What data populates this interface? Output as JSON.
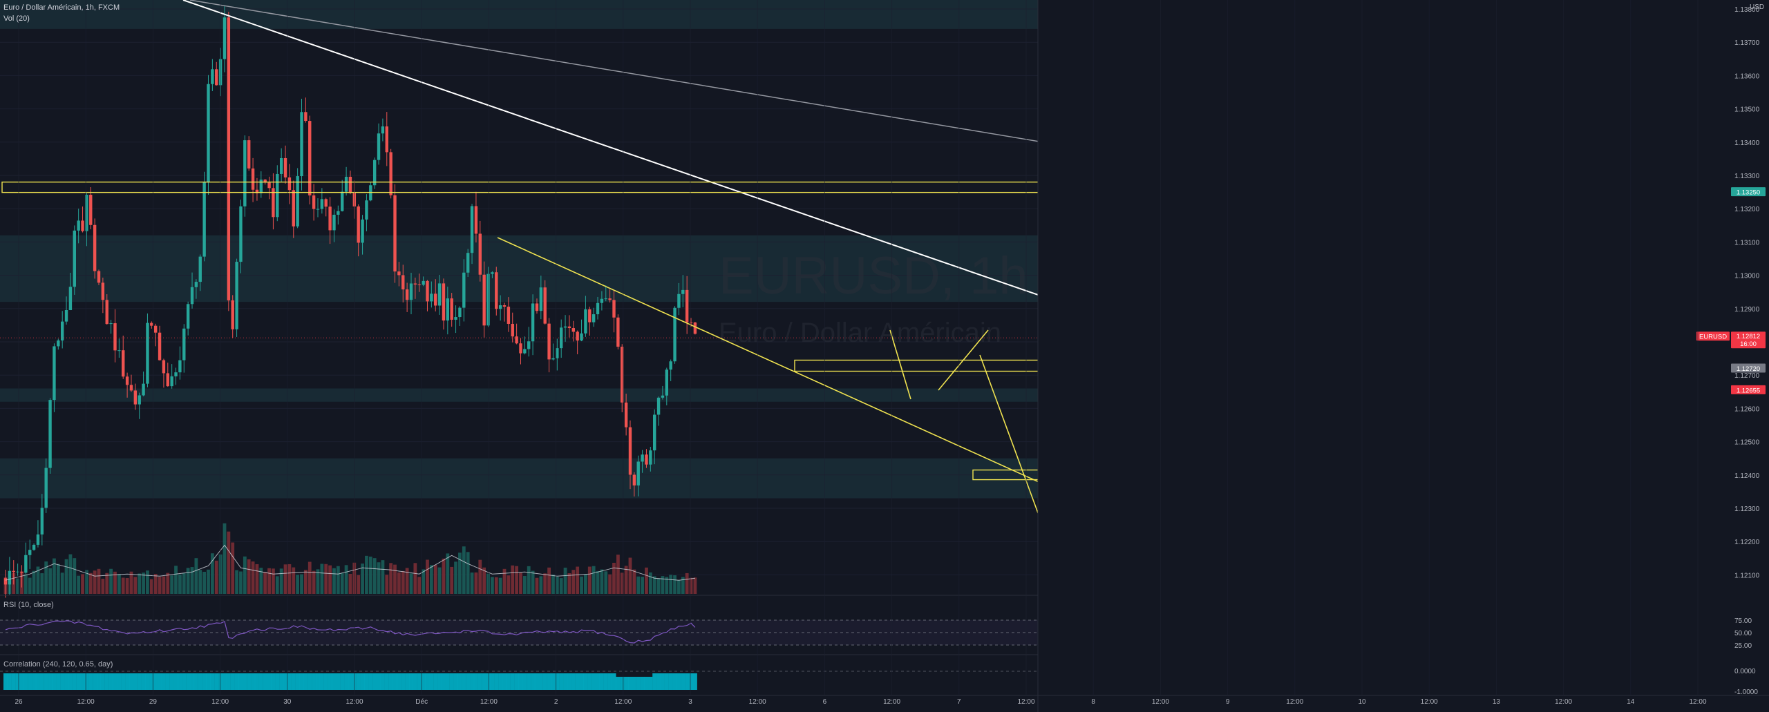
{
  "header": {
    "symbol_line": "Euro / Dollar Américain, 1h, FXCM",
    "volume_label": "Vol (20)",
    "currency_label": "USD"
  },
  "watermark": {
    "symbol": "EURUSD, 1h",
    "name": "Euro / Dollar Américain"
  },
  "indicators": {
    "rsi_label": "RSI (10, close)",
    "correlation_label": "Correlation (240, 120, 0.65, day)"
  },
  "price_axis": {
    "ticks": [
      "1.13800",
      "1.13700",
      "1.13600",
      "1.13500",
      "1.13400",
      "1.13300",
      "1.13200",
      "1.13100",
      "1.13000",
      "1.12900",
      "1.12800",
      "1.12700",
      "1.12600",
      "1.12500",
      "1.12400",
      "1.12300",
      "1.12200",
      "1.12100"
    ],
    "badges": [
      {
        "id": "target",
        "text": "1.13250",
        "color": "#26a69a"
      },
      {
        "id": "symbol",
        "text": "EURUSD",
        "color": "#f23645"
      },
      {
        "id": "last",
        "text": "1.12812",
        "color": "#f23645"
      },
      {
        "id": "countdown",
        "text": "16:00",
        "color": "#f23645"
      },
      {
        "id": "entry",
        "text": "1.12720",
        "color": "#787b86"
      },
      {
        "id": "stop",
        "text": "1.12655",
        "color": "#f23645"
      }
    ]
  },
  "rsi_axis": [
    "75.00",
    "50.00",
    "25.00"
  ],
  "corr_axis": [
    "0.0000",
    "-1.0000"
  ],
  "time_axis": [
    "26",
    "12:00",
    "29",
    "12:00",
    "30",
    "12:00",
    "Déc",
    "12:00",
    "2",
    "12:00",
    "3",
    "12:00",
    "6",
    "12:00",
    "7",
    "12:00",
    "8",
    "12:00",
    "9",
    "12:00",
    "10",
    "12:00",
    "13",
    "12:00",
    "14",
    "12:00"
  ],
  "chart_data": {
    "type": "candlestick",
    "symbol": "EURUSD",
    "timeframe": "1h",
    "y_range": [
      1.1205,
      1.1385
    ],
    "levels": {
      "take_profit": 1.1325,
      "last_price": 1.12812,
      "entry": 1.1272,
      "stop": 1.12655
    },
    "rsi_levels": [
      75,
      50,
      25
    ],
    "price_path": [
      [
        0,
        1.1209
      ],
      [
        4,
        1.1212
      ],
      [
        6,
        1.1216
      ],
      [
        8,
        1.1222
      ],
      [
        9,
        1.123
      ],
      [
        10,
        1.1245
      ],
      [
        11,
        1.1262
      ],
      [
        12,
        1.1278
      ],
      [
        14,
        1.1284
      ],
      [
        16,
        1.1297
      ],
      [
        17,
        1.1315
      ],
      [
        19,
        1.1312
      ],
      [
        20,
        1.1322
      ],
      [
        22,
        1.1304
      ],
      [
        24,
        1.129
      ],
      [
        26,
        1.1284
      ],
      [
        28,
        1.1275
      ],
      [
        30,
        1.1268
      ],
      [
        32,
        1.1262
      ],
      [
        34,
        1.1267
      ],
      [
        35,
        1.1288
      ],
      [
        37,
        1.128
      ],
      [
        39,
        1.1272
      ],
      [
        40,
        1.1265
      ],
      [
        42,
        1.127
      ],
      [
        44,
        1.1284
      ],
      [
        46,
        1.1295
      ],
      [
        48,
        1.1306
      ],
      [
        49,
        1.1325
      ],
      [
        50,
        1.1355
      ],
      [
        51,
        1.1362
      ],
      [
        52,
        1.1358
      ],
      [
        53,
        1.1365
      ],
      [
        54,
        1.138
      ],
      [
        55,
        1.129
      ],
      [
        56,
        1.1285
      ],
      [
        57,
        1.1305
      ],
      [
        58,
        1.132
      ],
      [
        59,
        1.134
      ],
      [
        60,
        1.1332
      ],
      [
        62,
        1.1322
      ],
      [
        64,
        1.133
      ],
      [
        66,
        1.132
      ],
      [
        68,
        1.1335
      ],
      [
        70,
        1.1325
      ],
      [
        71,
        1.1315
      ],
      [
        72,
        1.133
      ],
      [
        73,
        1.1352
      ],
      [
        74,
        1.1345
      ],
      [
        75,
        1.1325
      ],
      [
        77,
        1.1318
      ],
      [
        79,
        1.1322
      ],
      [
        80,
        1.1316
      ],
      [
        82,
        1.132
      ],
      [
        84,
        1.1328
      ],
      [
        86,
        1.132
      ],
      [
        87,
        1.1312
      ],
      [
        89,
        1.1322
      ],
      [
        91,
        1.1336
      ],
      [
        93,
        1.1344
      ],
      [
        94,
        1.1336
      ],
      [
        95,
        1.1322
      ],
      [
        96,
        1.1302
      ],
      [
        97,
        1.1298
      ],
      [
        99,
        1.1294
      ],
      [
        101,
        1.13
      ],
      [
        102,
        1.1298
      ],
      [
        104,
        1.1294
      ],
      [
        106,
        1.129
      ],
      [
        107,
        1.1296
      ],
      [
        108,
        1.1289
      ],
      [
        109,
        1.1292
      ],
      [
        110,
        1.1284
      ],
      [
        112,
        1.129
      ],
      [
        113,
        1.13
      ],
      [
        114,
        1.1306
      ],
      [
        115,
        1.1318
      ],
      [
        116,
        1.131
      ],
      [
        117,
        1.1303
      ],
      [
        118,
        1.1283
      ],
      [
        119,
        1.1298
      ],
      [
        120,
        1.1302
      ],
      [
        121,
        1.1292
      ],
      [
        122,
        1.1288
      ],
      [
        123,
        1.129
      ],
      [
        124,
        1.1284
      ],
      [
        126,
        1.1278
      ],
      [
        127,
        1.1276
      ],
      [
        129,
        1.1282
      ],
      [
        130,
        1.1294
      ],
      [
        131,
        1.129
      ],
      [
        132,
        1.1294
      ],
      [
        133,
        1.1286
      ],
      [
        134,
        1.1276
      ],
      [
        135,
        1.1278
      ],
      [
        137,
        1.1284
      ],
      [
        139,
        1.1285
      ],
      [
        141,
        1.1283
      ],
      [
        143,
        1.1287
      ],
      [
        145,
        1.129
      ],
      [
        147,
        1.1293
      ],
      [
        149,
        1.1295
      ],
      [
        150,
        1.1288
      ],
      [
        151,
        1.1276
      ],
      [
        152,
        1.1262
      ],
      [
        153,
        1.1256
      ],
      [
        154,
        1.1242
      ],
      [
        155,
        1.1234
      ],
      [
        156,
        1.1245
      ],
      [
        157,
        1.1248
      ],
      [
        158,
        1.1243
      ],
      [
        159,
        1.125
      ],
      [
        160,
        1.1258
      ],
      [
        161,
        1.1264
      ],
      [
        162,
        1.1266
      ],
      [
        163,
        1.127
      ],
      [
        164,
        1.1276
      ],
      [
        165,
        1.129
      ],
      [
        166,
        1.1292
      ],
      [
        167,
        1.1293
      ],
      [
        168,
        1.1288
      ],
      [
        169,
        1.1283
      ],
      [
        170,
        1.1281
      ]
    ],
    "volume_profile": [
      [
        0,
        0.15
      ],
      [
        6,
        0.3
      ],
      [
        12,
        0.55
      ],
      [
        16,
        0.45
      ],
      [
        22,
        0.25
      ],
      [
        30,
        0.3
      ],
      [
        38,
        0.25
      ],
      [
        46,
        0.35
      ],
      [
        50,
        0.5
      ],
      [
        54,
        1.0
      ],
      [
        58,
        0.45
      ],
      [
        66,
        0.3
      ],
      [
        74,
        0.35
      ],
      [
        82,
        0.3
      ],
      [
        88,
        0.45
      ],
      [
        95,
        0.4
      ],
      [
        102,
        0.3
      ],
      [
        110,
        0.75
      ],
      [
        114,
        0.55
      ],
      [
        120,
        0.3
      ],
      [
        128,
        0.35
      ],
      [
        136,
        0.25
      ],
      [
        144,
        0.3
      ],
      [
        150,
        0.45
      ],
      [
        154,
        0.4
      ],
      [
        160,
        0.2
      ],
      [
        166,
        0.15
      ],
      [
        170,
        0.2
      ]
    ],
    "rsi_path": [
      [
        0,
        55
      ],
      [
        6,
        65
      ],
      [
        12,
        72
      ],
      [
        18,
        70
      ],
      [
        24,
        58
      ],
      [
        30,
        48
      ],
      [
        36,
        52
      ],
      [
        42,
        56
      ],
      [
        48,
        62
      ],
      [
        54,
        70
      ],
      [
        55,
        38
      ],
      [
        60,
        55
      ],
      [
        66,
        58
      ],
      [
        72,
        62
      ],
      [
        78,
        55
      ],
      [
        84,
        56
      ],
      [
        90,
        60
      ],
      [
        96,
        50
      ],
      [
        100,
        45
      ],
      [
        106,
        48
      ],
      [
        112,
        52
      ],
      [
        116,
        55
      ],
      [
        120,
        48
      ],
      [
        126,
        46
      ],
      [
        132,
        52
      ],
      [
        138,
        50
      ],
      [
        144,
        54
      ],
      [
        150,
        44
      ],
      [
        154,
        30
      ],
      [
        158,
        34
      ],
      [
        162,
        48
      ],
      [
        166,
        62
      ],
      [
        169,
        68
      ],
      [
        170,
        60
      ]
    ]
  }
}
